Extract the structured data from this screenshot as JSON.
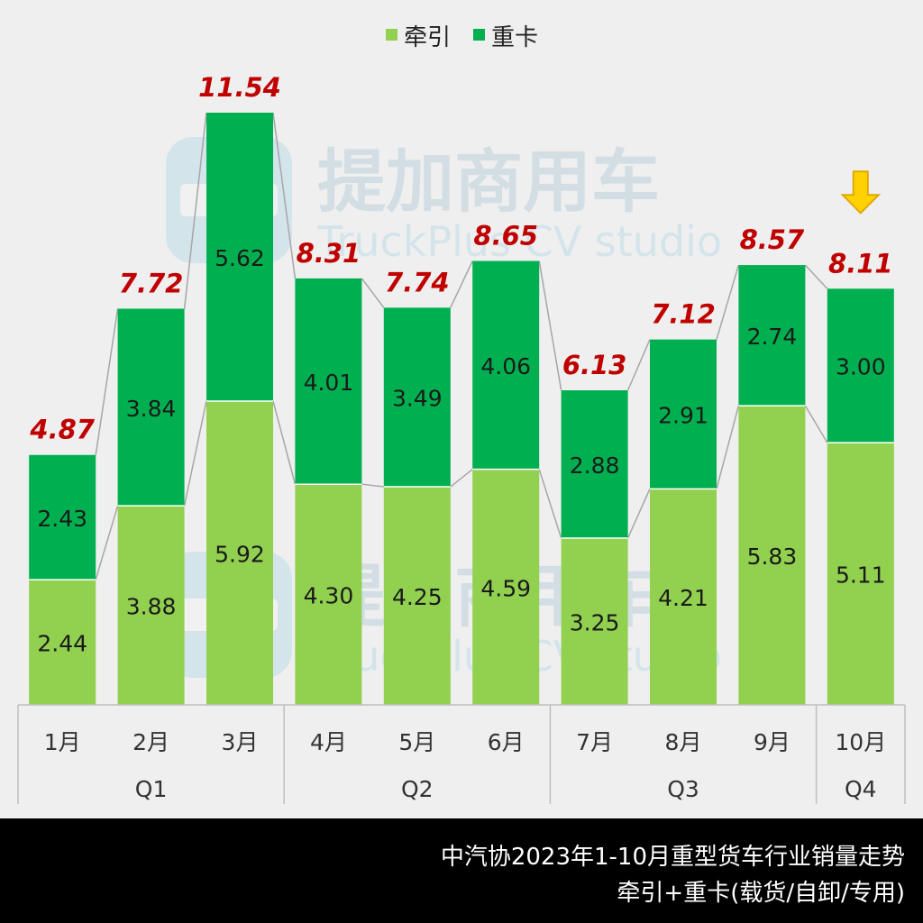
{
  "chart_data": {
    "type": "bar",
    "stacked": true,
    "categories": [
      "1月",
      "2月",
      "3月",
      "4月",
      "5月",
      "6月",
      "7月",
      "8月",
      "9月",
      "10月"
    ],
    "series": [
      {
        "name": "牵引",
        "color": "#92d050",
        "values": [
          2.44,
          3.88,
          5.92,
          4.3,
          4.25,
          4.59,
          3.25,
          4.21,
          5.83,
          5.11
        ]
      },
      {
        "name": "重卡",
        "color": "#00b050",
        "values": [
          2.43,
          3.84,
          5.62,
          4.01,
          3.49,
          4.06,
          2.88,
          2.91,
          2.74,
          3.0
        ]
      }
    ],
    "value_labels": {
      "牵引": [
        "2.44",
        "3.88",
        "5.92",
        "4.30",
        "4.25",
        "4.59",
        "3.25",
        "4.21",
        "5.83",
        "5.11"
      ],
      "重卡": [
        "2.43",
        "3.84",
        "5.62",
        "4.01",
        "3.49",
        "4.06",
        "2.88",
        "2.91",
        "2.74",
        "3.00"
      ]
    },
    "totals": [
      "4.87",
      "7.72",
      "11.54",
      "8.31",
      "7.74",
      "8.65",
      "6.13",
      "7.12",
      "8.57",
      "8.11"
    ],
    "total_color": "#c00000",
    "quarters": [
      {
        "label": "Q1",
        "span": 3
      },
      {
        "label": "Q2",
        "span": 3
      },
      {
        "label": "Q3",
        "span": 3
      },
      {
        "label": "Q4",
        "span": 1
      }
    ],
    "ylim": [
      0,
      11.54
    ],
    "legend_position": "top-center",
    "highlight_arrow_on": "10月",
    "grid": false
  },
  "watermark": {
    "title": "提加商用车",
    "subtitle": "TruckPlus CV studio"
  },
  "footer": {
    "line1": "中汽协2023年1-10月重型货车行业销量走势",
    "line2": "牵引+重卡(载货/自卸/专用)"
  }
}
